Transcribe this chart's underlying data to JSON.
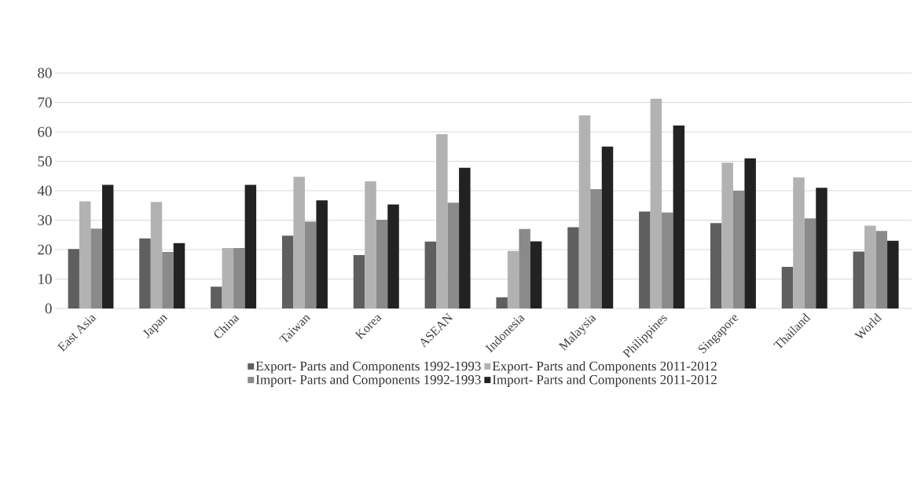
{
  "chart_data": {
    "type": "bar",
    "categories": [
      "East Asia",
      "Japan",
      "China",
      "Taiwan",
      "Korea",
      "ASEAN",
      "Indonesia",
      "Malaysia",
      "Philippines",
      "Singapore",
      "Thailand",
      "World"
    ],
    "series": [
      {
        "name": "Export- Parts and Components 1992-1993",
        "color": "#5f5f5f",
        "values": [
          20.2,
          23.8,
          7.4,
          24.7,
          18.1,
          22.7,
          3.8,
          27.6,
          32.9,
          29.0,
          14.1,
          19.3
        ]
      },
      {
        "name": "Export- Parts and Components 2011-2012",
        "color": "#b2b2b2",
        "values": [
          36.4,
          36.2,
          20.5,
          44.7,
          43.2,
          59.2,
          19.5,
          65.6,
          71.3,
          49.5,
          44.5,
          28.1
        ]
      },
      {
        "name": "Import- Parts and Components 1992-1993",
        "color": "#8a8a8a",
        "values": [
          27.1,
          19.2,
          20.5,
          29.5,
          30.1,
          35.9,
          27.0,
          40.5,
          32.6,
          40.0,
          30.6,
          26.3
        ]
      },
      {
        "name": "Import- Parts and Components 2011-2012",
        "color": "#222222",
        "values": [
          42.0,
          22.2,
          42.0,
          36.7,
          35.3,
          47.8,
          22.8,
          55.0,
          62.2,
          51.0,
          41.0,
          23.0
        ]
      }
    ],
    "ylim": [
      0,
      80
    ],
    "yticks": [
      0,
      10,
      20,
      30,
      40,
      50,
      60,
      70,
      80
    ],
    "grid": "y",
    "legend": "bottom"
  }
}
